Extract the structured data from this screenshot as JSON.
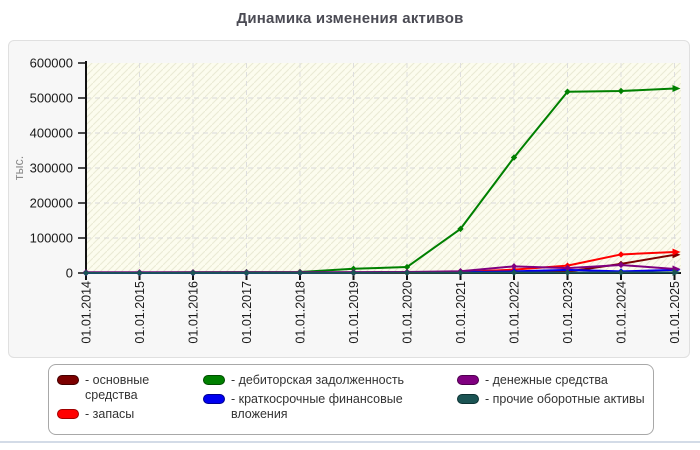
{
  "title": "Динамика изменения активов",
  "chart_data": {
    "type": "line",
    "title": "Динамика изменения активов",
    "ylabel": "тыс.",
    "ylim": [
      0,
      600000
    ],
    "ytick_step": 100000,
    "ytick_labels": [
      "0",
      "100000",
      "200000",
      "300000",
      "400000",
      "500000",
      "600000"
    ],
    "grid": "dashed",
    "legend_position": "bottom",
    "plot_background": "#fcfcee",
    "hatch_color": "#eaead4",
    "grid_color": "#d9d9d9",
    "axis_color": "#111111",
    "categories": [
      "01.01.2014",
      "01.01.2015",
      "01.01.2016",
      "01.01.2017",
      "01.01.2018",
      "01.01.2019",
      "01.01.2020",
      "01.01.2021",
      "01.01.2022",
      "01.01.2023",
      "01.01.2024",
      "01.01.2025"
    ],
    "series": [
      {
        "name": "основные средства",
        "color": "#7c0000",
        "border": "#420000",
        "values": [
          0,
          0,
          0,
          0,
          300,
          500,
          800,
          1500,
          2500,
          4000,
          26000,
          52000
        ]
      },
      {
        "name": "запасы",
        "color": "#ff0000",
        "border": "#a00000",
        "values": [
          0,
          0,
          0,
          0,
          300,
          700,
          1200,
          3000,
          9500,
          21000,
          53000,
          60000
        ]
      },
      {
        "name": "дебиторская задолженность",
        "color": "#008000",
        "border": "#004d00",
        "values": [
          1000,
          1200,
          2000,
          2500,
          3000,
          12000,
          17000,
          126000,
          330000,
          518000,
          520000,
          527000
        ]
      },
      {
        "name": "краткосрочные финансовые вложения",
        "color": "#0000f0",
        "border": "#000090",
        "values": [
          0,
          0,
          0,
          0,
          400,
          800,
          1500,
          2500,
          4500,
          9000,
          4500,
          9000
        ]
      },
      {
        "name": "денежные средства",
        "color": "#800080",
        "border": "#4d004d",
        "values": [
          2000,
          2000,
          2000,
          2000,
          2200,
          2500,
          3000,
          5000,
          19000,
          14000,
          23000,
          11500
        ]
      },
      {
        "name": "прочие оборотные активы",
        "color": "#1b5454",
        "border": "#0d3333",
        "values": [
          200,
          200,
          300,
          300,
          400,
          500,
          600,
          800,
          1000,
          1200,
          1500,
          1800
        ]
      }
    ]
  },
  "legend": {
    "items": [
      {
        "label": "- основные средства",
        "series": 0,
        "col": 0
      },
      {
        "label": "- запасы",
        "series": 1,
        "col": 0
      },
      {
        "label": "- дебиторская задолженность",
        "series": 2,
        "col": 1
      },
      {
        "label": "- краткосрочные финансовые вложения",
        "series": 3,
        "col": 1
      },
      {
        "label": "- денежные средства",
        "series": 4,
        "col": 2
      },
      {
        "label": "- прочие оборотные активы",
        "series": 5,
        "col": 2
      }
    ]
  }
}
